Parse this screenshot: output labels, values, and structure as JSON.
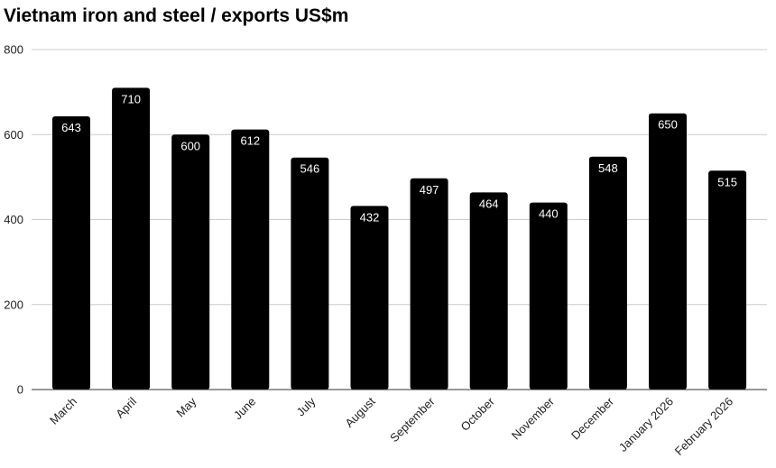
{
  "chart_data": {
    "type": "bar",
    "title": "Vietnam iron and steel / exports US$m",
    "categories": [
      "March",
      "April",
      "May",
      "June",
      "July",
      "August",
      "September",
      "October",
      "November",
      "December",
      "January 2026",
      "February 2026"
    ],
    "values": [
      643,
      710,
      600,
      612,
      546,
      432,
      497,
      464,
      440,
      548,
      650,
      515
    ],
    "ylim": [
      0,
      800
    ],
    "yticks": [
      0,
      200,
      400,
      600,
      800
    ],
    "xlabel": "",
    "ylabel": "",
    "grid": true,
    "bar_color": "#000000",
    "data_label_color": "#ffffff"
  }
}
